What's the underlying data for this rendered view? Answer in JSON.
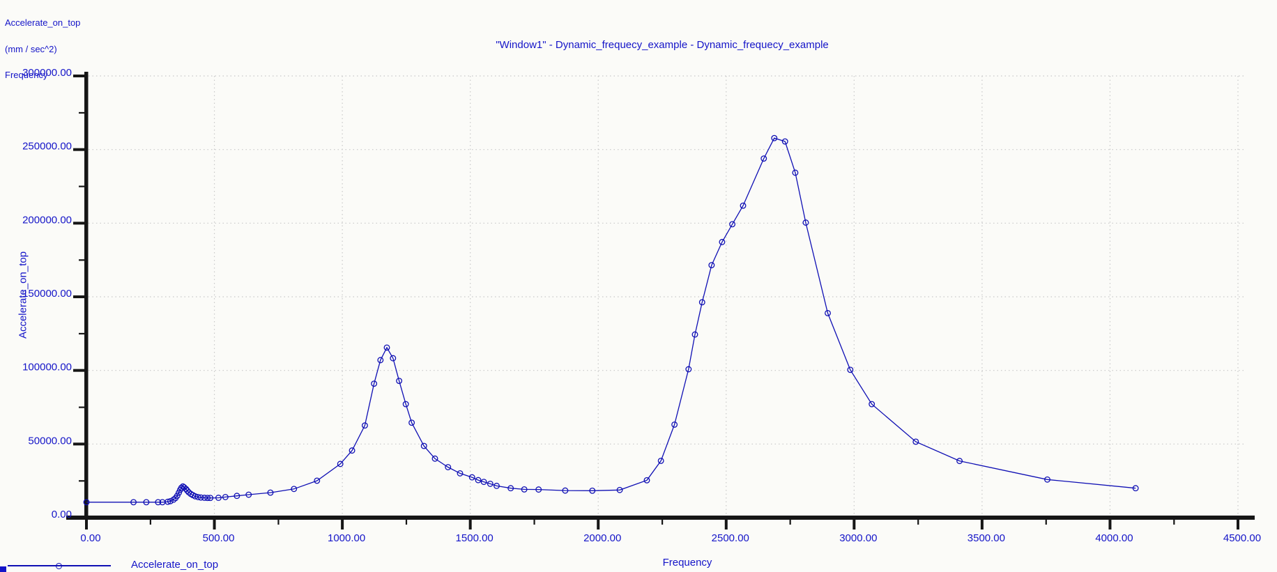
{
  "window": {
    "title": "\"Window1\" - Dynamic_frequecy_example - Dynamic_frequecy_example"
  },
  "corner_info": {
    "line1": "Accelerate_on_top",
    "line2": "(mm / sec^2)",
    "line3": "Frequency"
  },
  "legend": {
    "label": "Accelerate_on_top"
  },
  "colors": {
    "text_blue": "#1414c8",
    "curve_blue": "#0f0fb4",
    "axis_black": "#161616",
    "grid_gray": "#c8c8c8",
    "background": "#fbfbf8"
  },
  "chart_data": {
    "type": "line",
    "title": "\"Window1\" - Dynamic_frequecy_example - Dynamic_frequecy_example",
    "xlabel": "Frequency",
    "ylabel": "Accelerate_on_top",
    "y_units": "(mm / sec^2)",
    "xlim": [
      0,
      4500
    ],
    "ylim": [
      0,
      300000
    ],
    "x_major_step": 500,
    "x_minor_step": 250,
    "y_major_step": 50000,
    "y_minor_step": 25000,
    "tick_decimals": 2,
    "grid": "dotted-at-major-ticks",
    "legend_position": "bottom-left",
    "marker": "open-circle",
    "series": [
      {
        "name": "Accelerate_on_top",
        "color": "#0f0fb4",
        "points": [
          [
            0,
            10500
          ],
          [
            184,
            10500
          ],
          [
            234,
            10500
          ],
          [
            280,
            10500
          ],
          [
            297,
            10500
          ],
          [
            318,
            10800
          ],
          [
            328,
            11200
          ],
          [
            340,
            12200
          ],
          [
            348,
            13300
          ],
          [
            355,
            14900
          ],
          [
            361,
            16900
          ],
          [
            366,
            18800
          ],
          [
            371,
            20300
          ],
          [
            377,
            21200
          ],
          [
            382,
            20600
          ],
          [
            389,
            19500
          ],
          [
            394,
            18400
          ],
          [
            400,
            17200
          ],
          [
            408,
            16100
          ],
          [
            416,
            15300
          ],
          [
            425,
            14500
          ],
          [
            436,
            14000
          ],
          [
            447,
            13700
          ],
          [
            461,
            13500
          ],
          [
            473,
            13400
          ],
          [
            484,
            13400
          ],
          [
            516,
            13500
          ],
          [
            543,
            14000
          ],
          [
            588,
            14800
          ],
          [
            634,
            15600
          ],
          [
            719,
            17000
          ],
          [
            811,
            19500
          ],
          [
            901,
            25100
          ],
          [
            992,
            36500
          ],
          [
            1038,
            45600
          ],
          [
            1088,
            62600
          ],
          [
            1124,
            91000
          ],
          [
            1149,
            107000
          ],
          [
            1174,
            115500
          ],
          [
            1198,
            108300
          ],
          [
            1222,
            92900
          ],
          [
            1248,
            77100
          ],
          [
            1271,
            64500
          ],
          [
            1319,
            48700
          ],
          [
            1362,
            40100
          ],
          [
            1413,
            34300
          ],
          [
            1460,
            30100
          ],
          [
            1507,
            27400
          ],
          [
            1531,
            25500
          ],
          [
            1553,
            24300
          ],
          [
            1578,
            23000
          ],
          [
            1603,
            21600
          ],
          [
            1658,
            20000
          ],
          [
            1711,
            19200
          ],
          [
            1767,
            19100
          ],
          [
            1871,
            18400
          ],
          [
            1977,
            18300
          ],
          [
            2084,
            18800
          ],
          [
            2190,
            25400
          ],
          [
            2245,
            38600
          ],
          [
            2298,
            63200
          ],
          [
            2353,
            100800
          ],
          [
            2378,
            124400
          ],
          [
            2406,
            146300
          ],
          [
            2443,
            171500
          ],
          [
            2484,
            187200
          ],
          [
            2524,
            199300
          ],
          [
            2566,
            211900
          ],
          [
            2647,
            243900
          ],
          [
            2688,
            257800
          ],
          [
            2730,
            255500
          ],
          [
            2770,
            234300
          ],
          [
            2811,
            200400
          ],
          [
            2897,
            138900
          ],
          [
            2985,
            100400
          ],
          [
            3069,
            77100
          ],
          [
            3241,
            51600
          ],
          [
            3412,
            38500
          ],
          [
            3755,
            25900
          ],
          [
            4100,
            20000
          ]
        ]
      }
    ]
  }
}
